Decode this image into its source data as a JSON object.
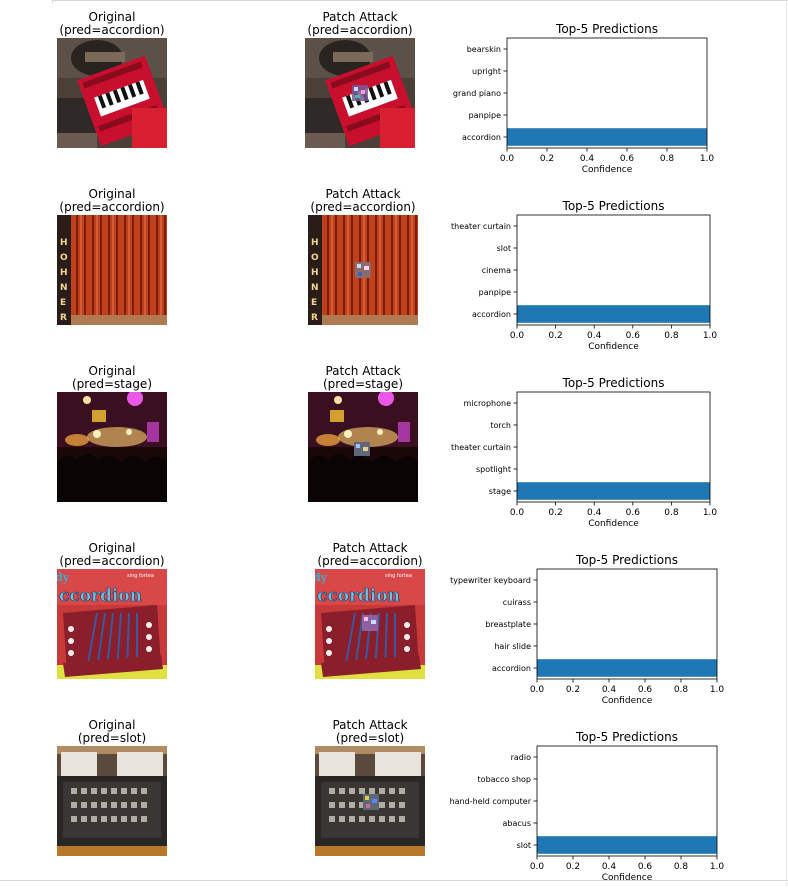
{
  "rows": [
    {
      "original_title": "Original",
      "original_pred": "(pred=accordion)",
      "attack_title": "Patch Attack",
      "attack_pred": "(pred=accordion)",
      "scene": "accordion-player"
    },
    {
      "original_title": "Original",
      "original_pred": "(pred=accordion)",
      "attack_title": "Patch Attack",
      "attack_pred": "(pred=accordion)",
      "scene": "hohner-bellows"
    },
    {
      "original_title": "Original",
      "original_pred": "(pred=stage)",
      "attack_title": "Patch Attack",
      "attack_pred": "(pred=stage)",
      "scene": "concert-stage"
    },
    {
      "original_title": "Original",
      "original_pred": "(pred=accordion)",
      "attack_title": "Patch Attack",
      "attack_pred": "(pred=accordion)",
      "scene": "accordion-poster"
    },
    {
      "original_title": "Original",
      "original_pred": "(pred=slot)",
      "attack_title": "Patch Attack",
      "attack_pred": "(pred=slot)",
      "scene": "slot-machine"
    }
  ],
  "chart_data": [
    {
      "type": "bar",
      "orientation": "horizontal",
      "title": "Top-5 Predictions",
      "xlabel": "Confidence",
      "ylabel": "",
      "categories": [
        "accordion",
        "panpipe",
        "grand piano",
        "upright",
        "bearskin"
      ],
      "values": [
        1.0,
        0.0,
        0.0,
        0.0,
        0.0
      ],
      "xlim": [
        0,
        1
      ],
      "xticks": [
        "0.0",
        "0.2",
        "0.4",
        "0.6",
        "0.8",
        "1.0"
      ],
      "bar_color": "#1f77b4",
      "grid": false
    },
    {
      "type": "bar",
      "orientation": "horizontal",
      "title": "Top-5 Predictions",
      "xlabel": "Confidence",
      "ylabel": "",
      "categories": [
        "accordion",
        "panpipe",
        "cinema",
        "slot",
        "theater curtain"
      ],
      "values": [
        1.0,
        0.0,
        0.0,
        0.0,
        0.0
      ],
      "xlim": [
        0,
        1
      ],
      "xticks": [
        "0.0",
        "0.2",
        "0.4",
        "0.6",
        "0.8",
        "1.0"
      ],
      "bar_color": "#1f77b4",
      "grid": false
    },
    {
      "type": "bar",
      "orientation": "horizontal",
      "title": "Top-5 Predictions",
      "xlabel": "Confidence",
      "ylabel": "",
      "categories": [
        "stage",
        "spotlight",
        "theater curtain",
        "torch",
        "microphone"
      ],
      "values": [
        1.0,
        0.0,
        0.0,
        0.0,
        0.0
      ],
      "xlim": [
        0,
        1
      ],
      "xticks": [
        "0.0",
        "0.2",
        "0.4",
        "0.6",
        "0.8",
        "1.0"
      ],
      "bar_color": "#1f77b4",
      "grid": false
    },
    {
      "type": "bar",
      "orientation": "horizontal",
      "title": "Top-5 Predictions",
      "xlabel": "Confidence",
      "ylabel": "",
      "categories": [
        "accordion",
        "hair slide",
        "breastplate",
        "cuirass",
        "typewriter keyboard"
      ],
      "values": [
        1.0,
        0.0,
        0.0,
        0.0,
        0.0
      ],
      "xlim": [
        0,
        1
      ],
      "xticks": [
        "0.0",
        "0.2",
        "0.4",
        "0.6",
        "0.8",
        "1.0"
      ],
      "bar_color": "#1f77b4",
      "grid": false
    },
    {
      "type": "bar",
      "orientation": "horizontal",
      "title": "Top-5 Predictions",
      "xlabel": "Confidence",
      "ylabel": "",
      "categories": [
        "slot",
        "abacus",
        "hand-held computer",
        "tobacco shop",
        "radio"
      ],
      "values": [
        1.0,
        0.0,
        0.0,
        0.0,
        0.0
      ],
      "xlim": [
        0,
        1
      ],
      "xticks": [
        "0.0",
        "0.2",
        "0.4",
        "0.6",
        "0.8",
        "1.0"
      ],
      "bar_color": "#1f77b4",
      "grid": false
    }
  ]
}
